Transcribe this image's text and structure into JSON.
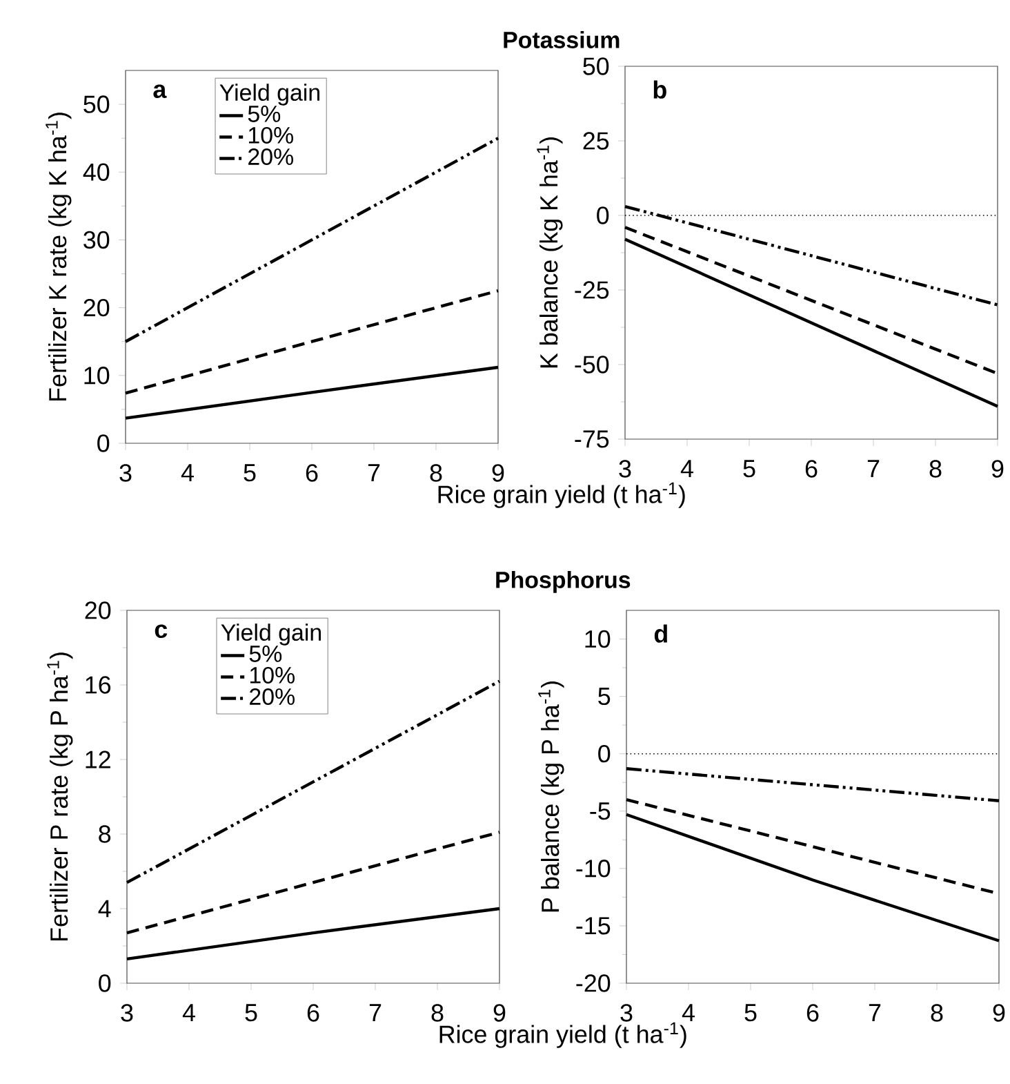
{
  "chart_data": [
    {
      "type": "line",
      "title": "Potassium",
      "xlabel": "Rice grain yield (t ha$^{-1}$)",
      "ylabel": "Fertilizer  K rate (kg K ha$^{-1}$)",
      "legend_title": "Yield gain",
      "legend": "top left",
      "annotations": [
        "a"
      ],
      "x": [
        3,
        6,
        9
      ],
      "xlim": [
        3,
        9
      ],
      "xticks": [
        3,
        4,
        5,
        6,
        7,
        8,
        9
      ],
      "ylim": [
        0,
        55
      ],
      "yticks": [
        0,
        10,
        20,
        30,
        40,
        50
      ],
      "series": [
        {
          "name": "5%",
          "color": "#000000",
          "line_style": "solid",
          "values": [
            3.7,
            7.5,
            11.2
          ]
        },
        {
          "name": "10%",
          "color": "#000000",
          "line_style": "dashed",
          "values": [
            7.4,
            15,
            22.5
          ]
        },
        {
          "name": "20%",
          "color": "#000000",
          "line_style": "dashdotdot",
          "values": [
            15,
            30,
            45
          ]
        }
      ]
    },
    {
      "type": "line",
      "ylabel": "K balance (kg K ha$^{-1}$)",
      "annotations": [
        "b"
      ],
      "x": [
        3,
        6,
        9
      ],
      "xlim": [
        3,
        9
      ],
      "xticks": [
        3,
        4,
        5,
        6,
        7,
        8,
        9
      ],
      "ylim": [
        -75,
        50
      ],
      "yticks": [
        -75,
        -50,
        -25,
        0,
        25,
        50
      ],
      "ref_lines": [
        {
          "axis": "y",
          "value": 0,
          "line_style": "dotted"
        }
      ],
      "series": [
        {
          "color": "#000000",
          "line_style": "solid",
          "values": [
            -8,
            -36,
            -64
          ]
        },
        {
          "color": "#000000",
          "line_style": "dashed",
          "values": [
            -4,
            -28.5,
            -53
          ]
        },
        {
          "color": "#000000",
          "line_style": "dashdotdot",
          "values": [
            3,
            -13.5,
            -30
          ]
        }
      ]
    },
    {
      "type": "line",
      "title": "Phosphorus",
      "xlabel": "Rice grain yield (t ha$^{-1}$)",
      "ylabel": "Fertilizer  P rate (kg P ha$^{-1}$)",
      "legend_title": "Yield gain",
      "legend": "top left",
      "annotations": [
        "c"
      ],
      "x": [
        3,
        6,
        9
      ],
      "xlim": [
        3,
        9
      ],
      "xticks": [
        3,
        4,
        5,
        6,
        7,
        8,
        9
      ],
      "ylim": [
        0,
        20
      ],
      "yticks": [
        0,
        4,
        8,
        12,
        16,
        20
      ],
      "series": [
        {
          "name": "5%",
          "color": "#000000",
          "line_style": "solid",
          "values": [
            1.3,
            2.7,
            4.0
          ]
        },
        {
          "name": "10%",
          "color": "#000000",
          "line_style": "dashed",
          "values": [
            2.7,
            5.4,
            8.1
          ]
        },
        {
          "name": "20%",
          "color": "#000000",
          "line_style": "dashdotdot",
          "values": [
            5.4,
            10.8,
            16.2
          ]
        }
      ]
    },
    {
      "type": "line",
      "ylabel": "P balance (kg P ha$^{-1}$)",
      "annotations": [
        "d"
      ],
      "x": [
        3,
        6,
        9
      ],
      "xlim": [
        3,
        9
      ],
      "xticks": [
        3,
        4,
        5,
        6,
        7,
        8,
        9
      ],
      "ylim": [
        -20,
        12.5
      ],
      "yticks": [
        -20,
        -15,
        -10,
        -5,
        0,
        5,
        10
      ],
      "ref_lines": [
        {
          "axis": "y",
          "value": 0,
          "line_style": "dotted"
        }
      ],
      "series": [
        {
          "color": "#000000",
          "line_style": "solid",
          "values": [
            -5.3,
            -11,
            -16.3
          ]
        },
        {
          "color": "#000000",
          "line_style": "dashed",
          "values": [
            -4,
            -8.1,
            -12.2
          ]
        },
        {
          "color": "#000000",
          "line_style": "dashdotdot",
          "values": [
            -1.3,
            -2.7,
            -4.1
          ]
        }
      ]
    }
  ]
}
